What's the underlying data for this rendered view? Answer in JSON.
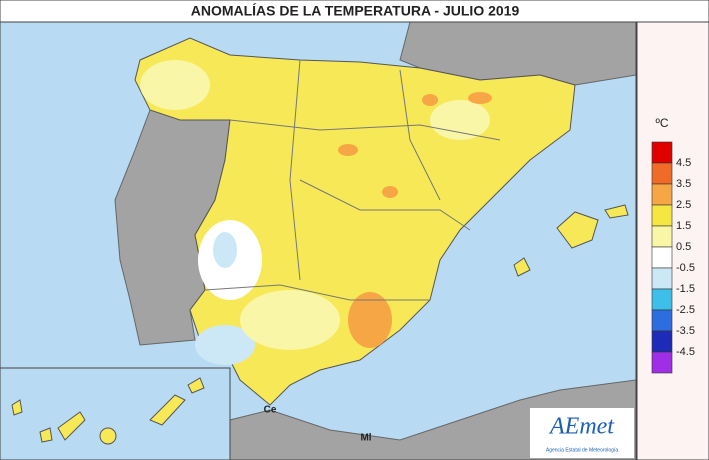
{
  "title": "ANOMALÍAS DE LA TEMPERATURA - JULIO 2019",
  "legend": {
    "unit": "ºC",
    "labels": [
      4.5,
      3.5,
      2.5,
      1.5,
      0.5,
      -0.5,
      -1.5,
      -2.5,
      -3.5,
      -4.5
    ],
    "colors": [
      "#e00000",
      "#f06a28",
      "#f7a645",
      "#f5e642",
      "#faf6a8",
      "#ffffff",
      "#cce8f6",
      "#3cc0ea",
      "#2c6ee0",
      "#1e2ab8",
      "#a02ee6"
    ]
  },
  "places": {
    "ceuta": "Ce",
    "melilla": "Ml"
  },
  "logo": {
    "name": "AEmet",
    "subtitle": "Agencia Estatal de Meteorología"
  }
}
